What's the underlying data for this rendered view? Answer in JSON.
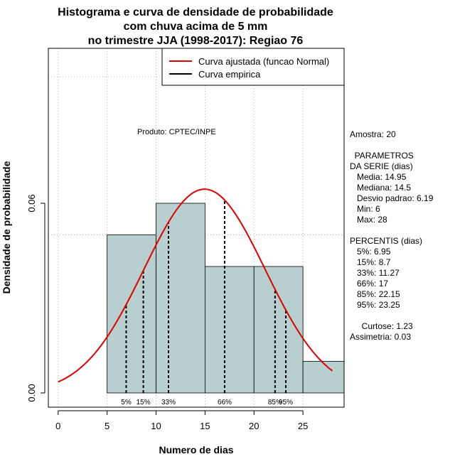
{
  "chart_data": {
    "type": "bar",
    "title_lines": [
      "Histograma e curva de densidade de probabilidade",
      "com chuva acima de 5 mm",
      "no trimestre JJA (1998-2017): Regiao 76"
    ],
    "xlabel": "Numero de dias",
    "ylabel": "Densidade de probabilidade",
    "xlim": [
      -1,
      29.2
    ],
    "ylim": [
      -0.0045,
      0.109
    ],
    "x_ticks": [
      0,
      5,
      10,
      15,
      20,
      25
    ],
    "x_tick_labels": [
      "0",
      "5",
      "10",
      "15",
      "20",
      "25"
    ],
    "y_ticks": [
      0.0,
      0.06
    ],
    "y_tick_labels": [
      "0.00",
      "0.06"
    ],
    "grid": true,
    "grid_x": [
      0,
      5,
      10,
      15,
      20,
      25
    ],
    "grid_y": [
      0.05,
      0.1
    ],
    "bars": [
      {
        "x0": 5,
        "x1": 10,
        "density": 0.05
      },
      {
        "x0": 10,
        "x1": 15,
        "density": 0.06
      },
      {
        "x0": 15,
        "x1": 20,
        "density": 0.04
      },
      {
        "x0": 20,
        "x1": 25,
        "density": 0.04
      },
      {
        "x0": 25,
        "x1": 30,
        "density": 0.01
      }
    ],
    "bar_color": "#b7cfcf",
    "normal_curve": {
      "mean": 14.95,
      "sd": 6.19,
      "x_from": 0,
      "x_to": 28,
      "color": "#e00000"
    },
    "percentiles": [
      {
        "label": "5%",
        "value": 6.95
      },
      {
        "label": "15%",
        "value": 8.7
      },
      {
        "label": "33%",
        "value": 11.27
      },
      {
        "label": "66%",
        "value": 17
      },
      {
        "label": "85%",
        "value": 22.15
      },
      {
        "label": "95%",
        "value": 23.25
      }
    ],
    "legend": {
      "position": "top-right",
      "entries": [
        {
          "label": "Curva ajustada (funcao Normal)",
          "color": "#e00000"
        },
        {
          "label": "Curva empirica",
          "color": "#000000"
        }
      ]
    },
    "annotation": "Produto: CPTEC/INPE",
    "stats_lines": [
      "Amostra: 20",
      "",
      "  PARAMETROS",
      "DA SERIE (dias)",
      "   Media: 14.95",
      "   Mediana: 14.5",
      "   Desvio padrao: 6.19",
      "   Min: 6",
      "   Max: 28",
      "",
      "PERCENTIS (dias)",
      "   5%: 6.95",
      "   15%: 8.7",
      "   33%: 11.27",
      "   66%: 17",
      "   85%: 22.15",
      "   95%: 23.25",
      "",
      "     Curtose: 1.23",
      "Assimetria: 0.03"
    ]
  }
}
